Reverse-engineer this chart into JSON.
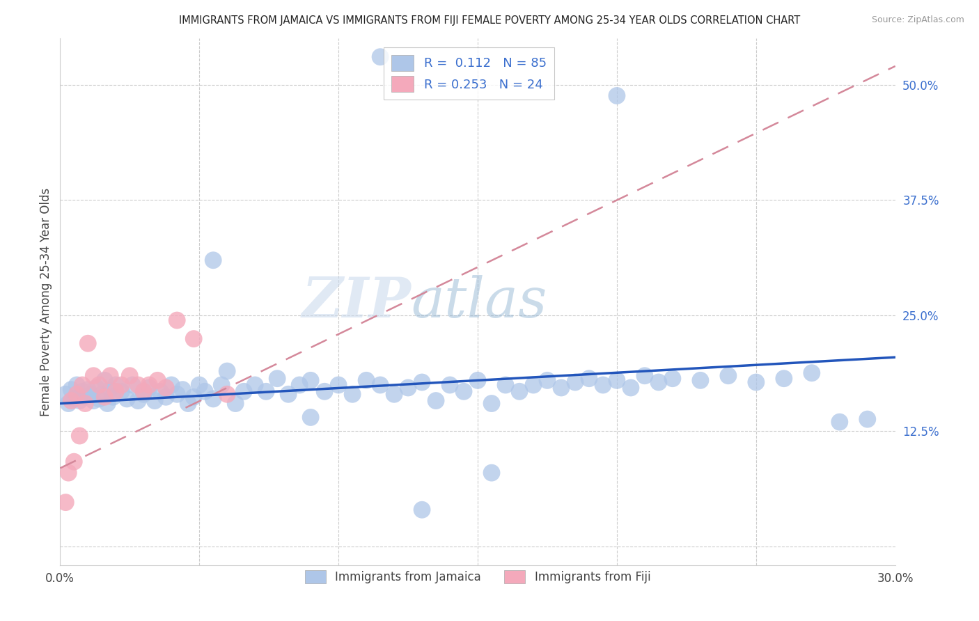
{
  "title": "IMMIGRANTS FROM JAMAICA VS IMMIGRANTS FROM FIJI FEMALE POVERTY AMONG 25-34 YEAR OLDS CORRELATION CHART",
  "source": "Source: ZipAtlas.com",
  "ylabel": "Female Poverty Among 25-34 Year Olds",
  "xlim": [
    0.0,
    0.3
  ],
  "ylim": [
    -0.02,
    0.55
  ],
  "yticks": [
    0.0,
    0.125,
    0.25,
    0.375,
    0.5
  ],
  "ytick_labels": [
    "",
    "12.5%",
    "25.0%",
    "37.5%",
    "50.0%"
  ],
  "jamaica_color": "#aec6e8",
  "fiji_color": "#f4a9bb",
  "trend_jamaica_color": "#2255bb",
  "trend_fiji_color": "#d4889a",
  "watermark": "ZIPatlas",
  "jamaica_N": 85,
  "fiji_N": 24,
  "jamaica_x": [
    0.002,
    0.003,
    0.004,
    0.005,
    0.006,
    0.007,
    0.008,
    0.009,
    0.01,
    0.011,
    0.012,
    0.013,
    0.014,
    0.015,
    0.016,
    0.017,
    0.018,
    0.019,
    0.02,
    0.022,
    0.024,
    0.026,
    0.028,
    0.03,
    0.032,
    0.034,
    0.036,
    0.038,
    0.04,
    0.042,
    0.044,
    0.046,
    0.048,
    0.05,
    0.052,
    0.055,
    0.058,
    0.06,
    0.063,
    0.066,
    0.07,
    0.074,
    0.078,
    0.082,
    0.086,
    0.09,
    0.095,
    0.1,
    0.105,
    0.11,
    0.115,
    0.12,
    0.125,
    0.13,
    0.135,
    0.14,
    0.145,
    0.15,
    0.155,
    0.16,
    0.165,
    0.17,
    0.175,
    0.18,
    0.185,
    0.19,
    0.195,
    0.2,
    0.205,
    0.21,
    0.215,
    0.22,
    0.23,
    0.24,
    0.25,
    0.26,
    0.27,
    0.28,
    0.29,
    0.115,
    0.2,
    0.055,
    0.09,
    0.13,
    0.155
  ],
  "jamaica_y": [
    0.165,
    0.155,
    0.17,
    0.16,
    0.175,
    0.158,
    0.168,
    0.162,
    0.17,
    0.165,
    0.158,
    0.172,
    0.16,
    0.165,
    0.18,
    0.155,
    0.17,
    0.162,
    0.175,
    0.168,
    0.16,
    0.175,
    0.158,
    0.165,
    0.172,
    0.158,
    0.168,
    0.162,
    0.175,
    0.165,
    0.17,
    0.155,
    0.162,
    0.175,
    0.168,
    0.16,
    0.175,
    0.19,
    0.155,
    0.168,
    0.175,
    0.168,
    0.182,
    0.165,
    0.175,
    0.18,
    0.168,
    0.175,
    0.165,
    0.18,
    0.175,
    0.165,
    0.172,
    0.178,
    0.158,
    0.175,
    0.168,
    0.18,
    0.155,
    0.175,
    0.168,
    0.175,
    0.18,
    0.172,
    0.178,
    0.182,
    0.175,
    0.18,
    0.172,
    0.185,
    0.178,
    0.182,
    0.18,
    0.185,
    0.178,
    0.182,
    0.188,
    0.135,
    0.138,
    0.53,
    0.488,
    0.31,
    0.14,
    0.04,
    0.08
  ],
  "fiji_x": [
    0.002,
    0.003,
    0.004,
    0.005,
    0.006,
    0.007,
    0.008,
    0.009,
    0.01,
    0.012,
    0.014,
    0.016,
    0.018,
    0.02,
    0.022,
    0.025,
    0.028,
    0.03,
    0.032,
    0.035,
    0.038,
    0.042,
    0.048,
    0.06
  ],
  "fiji_y": [
    0.048,
    0.08,
    0.158,
    0.092,
    0.165,
    0.12,
    0.175,
    0.155,
    0.22,
    0.185,
    0.175,
    0.162,
    0.185,
    0.168,
    0.175,
    0.185,
    0.175,
    0.168,
    0.175,
    0.18,
    0.172,
    0.245,
    0.225,
    0.165
  ],
  "jam_trend_x0": 0.0,
  "jam_trend_y0": 0.155,
  "jam_trend_x1": 0.3,
  "jam_trend_y1": 0.205,
  "fiji_trend_x0": 0.0,
  "fiji_trend_y0": 0.085,
  "fiji_trend_x1": 0.3,
  "fiji_trend_y1": 0.52
}
